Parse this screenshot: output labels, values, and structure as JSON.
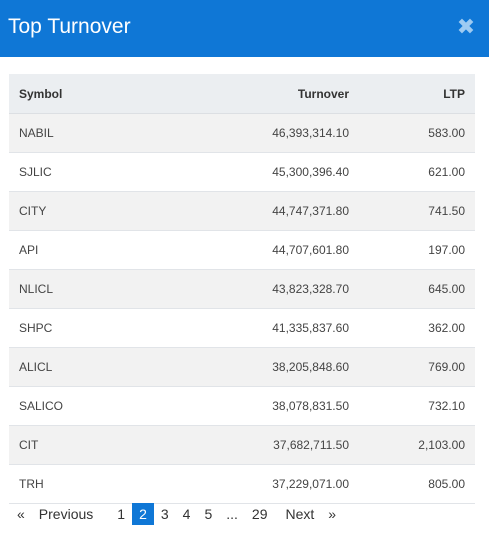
{
  "modal": {
    "title": "Top Turnover",
    "close_symbol": "✖"
  },
  "table": {
    "headers": {
      "symbol": "Symbol",
      "turnover": "Turnover",
      "ltp": "LTP"
    },
    "rows": [
      {
        "symbol": "NABIL",
        "turnover": "46,393,314.10",
        "ltp": "583.00"
      },
      {
        "symbol": "SJLIC",
        "turnover": "45,300,396.40",
        "ltp": "621.00"
      },
      {
        "symbol": "CITY",
        "turnover": "44,747,371.80",
        "ltp": "741.50"
      },
      {
        "symbol": "API",
        "turnover": "44,707,601.80",
        "ltp": "197.00"
      },
      {
        "symbol": "NLICL",
        "turnover": "43,823,328.70",
        "ltp": "645.00"
      },
      {
        "symbol": "SHPC",
        "turnover": "41,335,837.60",
        "ltp": "362.00"
      },
      {
        "symbol": "ALICL",
        "turnover": "38,205,848.60",
        "ltp": "769.00"
      },
      {
        "symbol": "SALICO",
        "turnover": "38,078,831.50",
        "ltp": "732.10"
      },
      {
        "symbol": "CIT",
        "turnover": "37,682,711.50",
        "ltp": "2,103.00"
      },
      {
        "symbol": "TRH",
        "turnover": "37,229,071.00",
        "ltp": "805.00"
      }
    ]
  },
  "pagination": {
    "prev_arrow": "«",
    "prev_label": "Previous",
    "pages": [
      "1",
      "2",
      "3",
      "4",
      "5",
      "...",
      "29"
    ],
    "active_page": "2",
    "next_label": "Next",
    "next_arrow": "»"
  },
  "colors": {
    "accent": "#0f77d6",
    "header_bg": "#ebeef1",
    "stripe": "#f2f2f2"
  }
}
